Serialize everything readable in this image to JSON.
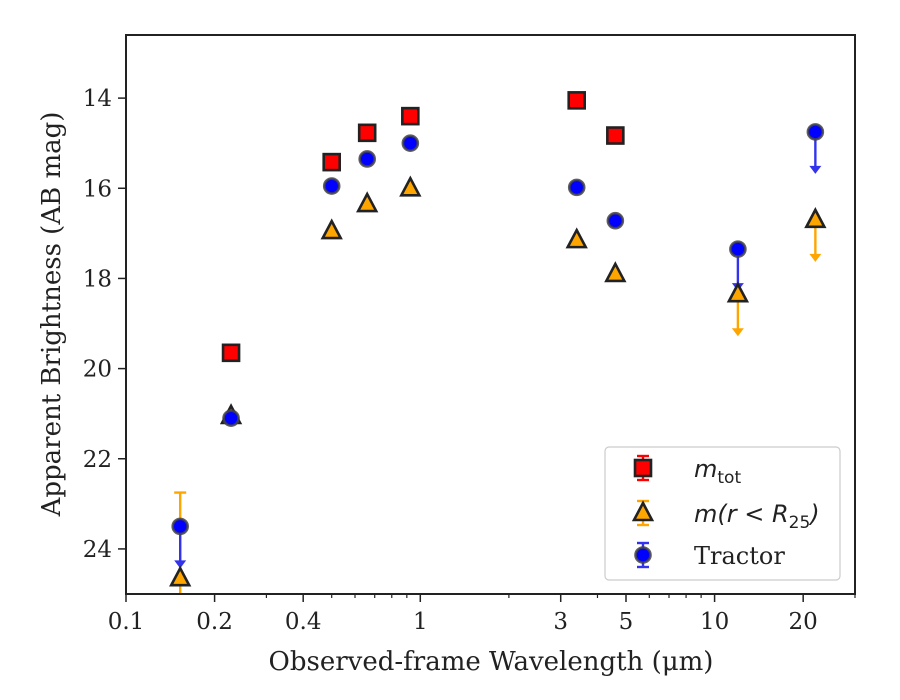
{
  "chart_data": {
    "type": "scatter",
    "xlabel": "Observed-frame Wavelength (μm)",
    "ylabel": "Apparent Brightness (AB mag)",
    "xscale": "log",
    "xlim": [
      0.1,
      30
    ],
    "ylim": [
      25,
      12.6
    ],
    "y_inverted": true,
    "grid": false,
    "legend_position": "lower-right",
    "xticks": [
      {
        "value": 0.1,
        "label": "0.1"
      },
      {
        "value": 0.2,
        "label": "0.2"
      },
      {
        "value": 0.4,
        "label": "0.4"
      },
      {
        "value": 1,
        "label": "1"
      },
      {
        "value": 3,
        "label": "3"
      },
      {
        "value": 5,
        "label": "5"
      },
      {
        "value": 10,
        "label": "10"
      },
      {
        "value": 20,
        "label": "20"
      }
    ],
    "yticks": [
      {
        "value": 14,
        "label": "14"
      },
      {
        "value": 16,
        "label": "16"
      },
      {
        "value": 18,
        "label": "18"
      },
      {
        "value": 20,
        "label": "20"
      },
      {
        "value": 22,
        "label": "22"
      },
      {
        "value": 24,
        "label": "24"
      }
    ],
    "series": [
      {
        "name": "m_tot",
        "legend": {
          "base": "m",
          "sub": "tot"
        },
        "marker": "square",
        "color": "#ff0000",
        "edge": "#222222",
        "points": [
          {
            "x": 0.2275,
            "y": 19.65
          },
          {
            "x": 0.5,
            "y": 15.42
          },
          {
            "x": 0.66,
            "y": 14.77
          },
          {
            "x": 0.925,
            "y": 14.4
          },
          {
            "x": 3.4,
            "y": 14.05
          },
          {
            "x": 4.6,
            "y": 14.83
          }
        ]
      },
      {
        "name": "m(r < R25)",
        "legend": {
          "base": "m(r < R",
          "sub": "25",
          "tail": ")"
        },
        "marker": "triangle",
        "color": "#ffa500",
        "edge": "#222222",
        "points": [
          {
            "x": 0.1528,
            "y": 24.65,
            "upper_limit": true,
            "limit_from": 22.75
          },
          {
            "x": 0.2275,
            "y": 21.05
          },
          {
            "x": 0.5,
            "y": 16.95
          },
          {
            "x": 0.66,
            "y": 16.35
          },
          {
            "x": 0.925,
            "y": 16.0
          },
          {
            "x": 3.4,
            "y": 17.15
          },
          {
            "x": 4.6,
            "y": 17.9
          },
          {
            "x": 12.0,
            "y": 18.35,
            "upper_limit": true
          },
          {
            "x": 22.0,
            "y": 16.7,
            "upper_limit": true
          }
        ]
      },
      {
        "name": "Tractor",
        "legend": {
          "base": "Tractor"
        },
        "marker": "circle",
        "color": "#0000ff",
        "edge": "#222222",
        "points": [
          {
            "x": 0.1528,
            "y": 23.5,
            "upper_limit": true
          },
          {
            "x": 0.2275,
            "y": 21.1
          },
          {
            "x": 0.5,
            "y": 15.95
          },
          {
            "x": 0.66,
            "y": 15.35
          },
          {
            "x": 0.925,
            "y": 15.0
          },
          {
            "x": 3.4,
            "y": 15.98
          },
          {
            "x": 4.6,
            "y": 16.72
          },
          {
            "x": 12.0,
            "y": 17.35,
            "upper_limit": true
          },
          {
            "x": 22.0,
            "y": 14.75,
            "upper_limit": true
          }
        ]
      }
    ]
  }
}
